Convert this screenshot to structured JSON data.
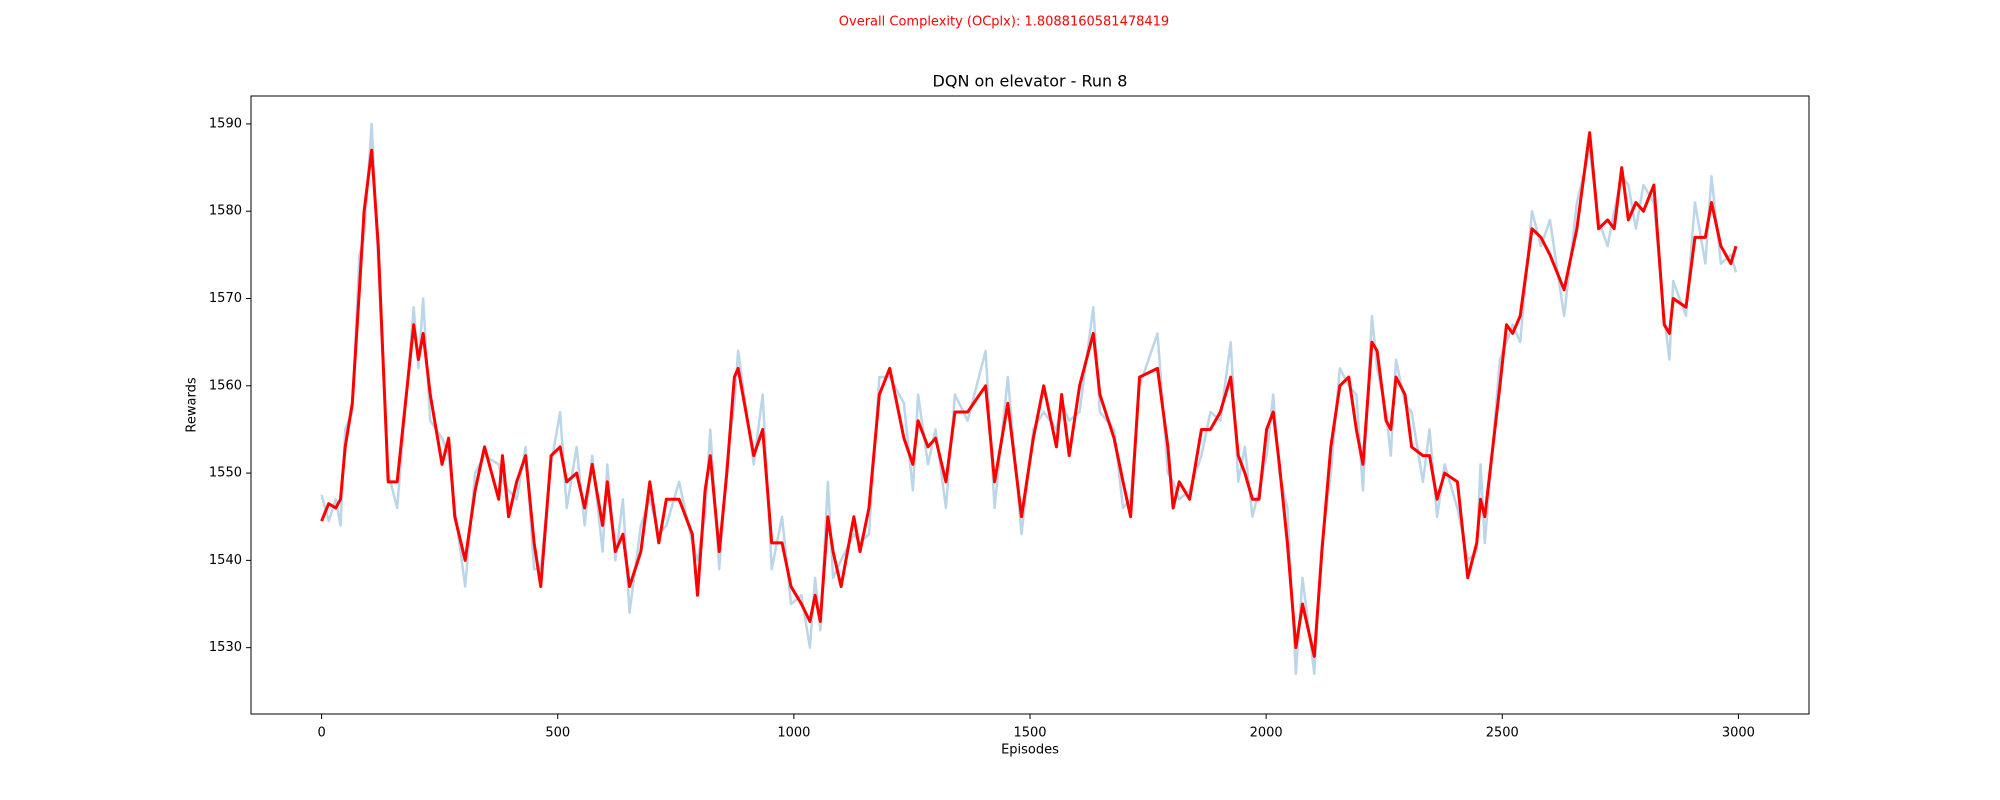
{
  "chart_data": {
    "type": "line",
    "suptitle": "Overall Complexity (OCplx): 1.8088160581478419",
    "suptitle_color": "#ff0000",
    "title": "DQN on elevator - Run 8",
    "xlabel": "Episodes",
    "ylabel": "Rewards",
    "xlim": [
      -149.5,
      3149.5
    ],
    "ylim": [
      1522.4,
      1593.2
    ],
    "xticks": [
      0,
      500,
      1000,
      1500,
      2000,
      2500,
      3000
    ],
    "yticks": [
      1530,
      1540,
      1550,
      1560,
      1570,
      1580,
      1590
    ],
    "x": [
      0,
      15,
      30,
      40,
      50,
      65,
      80,
      90,
      106,
      120,
      141,
      160,
      195,
      205,
      215,
      230,
      255,
      269,
      282,
      304,
      325,
      345,
      375,
      383,
      396,
      413,
      432,
      450,
      464,
      486,
      505,
      519,
      540,
      557,
      573,
      595,
      605,
      622,
      638,
      652,
      676,
      695,
      714,
      730,
      757,
      785,
      796,
      812,
      823,
      842,
      858,
      874,
      882,
      915,
      934,
      953,
      975,
      994,
      1016,
      1034,
      1045,
      1056,
      1072,
      1083,
      1100,
      1127,
      1140,
      1159,
      1181,
      1203,
      1233,
      1252,
      1263,
      1284,
      1300,
      1322,
      1341,
      1368,
      1406,
      1425,
      1453,
      1482,
      1507,
      1529,
      1556,
      1567,
      1583,
      1605,
      1634,
      1648,
      1678,
      1697,
      1713,
      1732,
      1770,
      1792,
      1803,
      1816,
      1838,
      1863,
      1882,
      1903,
      1925,
      1941,
      1955,
      1971,
      1985,
      2001,
      2015,
      2028,
      2045,
      2063,
      2077,
      2102,
      2118,
      2137,
      2156,
      2175,
      2191,
      2205,
      2224,
      2235,
      2254,
      2264,
      2275,
      2294,
      2308,
      2332,
      2346,
      2362,
      2378,
      2405,
      2427,
      2446,
      2454,
      2463,
      2495,
      2509,
      2522,
      2538,
      2563,
      2582,
      2601,
      2631,
      2658,
      2685,
      2704,
      2723,
      2737,
      2753,
      2767,
      2783,
      2799,
      2821,
      2843,
      2854,
      2862,
      2889,
      2908,
      2930,
      2943,
      2963,
      2984,
      2995
    ],
    "series": [
      {
        "color": "#1f77b4",
        "opacity": 0.3,
        "line_width": 2.5,
        "values": [
          1547.5,
          1544.5,
          1547,
          1544,
          1555,
          1557,
          1575,
          1577,
          1590,
          1574,
          1550,
          1546,
          1569,
          1562,
          1570,
          1556,
          1554,
          1552,
          1546,
          1537,
          1550,
          1552,
          1551,
          1549,
          1548,
          1547,
          1553,
          1539,
          1539,
          1551,
          1557,
          1546,
          1553,
          1544,
          1552,
          1541,
          1551,
          1540,
          1547,
          1534,
          1544,
          1547,
          1543,
          1544,
          1549,
          1542,
          1540,
          1545,
          1555,
          1539,
          1551,
          1558,
          1564,
          1551,
          1559,
          1539,
          1545,
          1535,
          1536,
          1530,
          1538,
          1532,
          1549,
          1538,
          1540,
          1543,
          1542,
          1543,
          1561,
          1561,
          1558,
          1548,
          1559,
          1551,
          1555,
          1546,
          1559,
          1556,
          1564,
          1546,
          1561,
          1543,
          1555,
          1557,
          1555,
          1558,
          1556,
          1557,
          1569,
          1557,
          1555,
          1546,
          1547,
          1560,
          1566,
          1550,
          1549,
          1547,
          1548,
          1552,
          1557,
          1556,
          1565,
          1549,
          1553,
          1545,
          1548,
          1552,
          1559,
          1550,
          1546,
          1527,
          1538,
          1527,
          1542,
          1550,
          1562,
          1560,
          1559,
          1548,
          1568,
          1562,
          1557,
          1552,
          1563,
          1558,
          1557,
          1549,
          1555,
          1545,
          1551,
          1546,
          1540,
          1541,
          1551,
          1542,
          1563,
          1565,
          1567,
          1565,
          1580,
          1576,
          1579,
          1568,
          1581,
          1587,
          1579,
          1576,
          1580,
          1584,
          1583,
          1578,
          1583,
          1581,
          1568,
          1563,
          1572,
          1568,
          1581,
          1574,
          1584,
          1574,
          1575,
          1573
        ]
      },
      {
        "color": "#ff0000",
        "opacity": 1,
        "line_width": 3,
        "values": [
          1544.5,
          1546.5,
          1546,
          1547,
          1553,
          1558,
          1571,
          1580,
          1587,
          1576,
          1549,
          1549,
          1567,
          1563,
          1566,
          1559,
          1551,
          1554,
          1545,
          1540,
          1548,
          1553,
          1547,
          1552,
          1545,
          1549,
          1552,
          1542,
          1537,
          1552,
          1553,
          1549,
          1550,
          1546,
          1551,
          1544,
          1549,
          1541,
          1543,
          1537,
          1541,
          1549,
          1542,
          1547,
          1547,
          1543,
          1536,
          1548,
          1552,
          1541,
          1550,
          1561,
          1562,
          1552,
          1555,
          1542,
          1542,
          1537,
          1535,
          1533,
          1536,
          1533,
          1545,
          1541,
          1537,
          1545,
          1541,
          1546,
          1559,
          1562,
          1554,
          1551,
          1556,
          1553,
          1554,
          1549,
          1557,
          1557,
          1560,
          1549,
          1558,
          1545,
          1554,
          1560,
          1553,
          1559,
          1552,
          1560,
          1566,
          1559,
          1554,
          1549,
          1545,
          1561,
          1562,
          1553,
          1546,
          1549,
          1547,
          1555,
          1555,
          1557,
          1561,
          1552,
          1550,
          1547,
          1547,
          1555,
          1557,
          1551,
          1542,
          1530,
          1535,
          1529,
          1541,
          1553,
          1560,
          1561,
          1555,
          1551,
          1565,
          1564,
          1556,
          1555,
          1561,
          1559,
          1553,
          1552,
          1552,
          1547,
          1550,
          1549,
          1538,
          1542,
          1547,
          1545,
          1560,
          1567,
          1566,
          1568,
          1578,
          1577,
          1575,
          1571,
          1578,
          1589,
          1578,
          1579,
          1578,
          1585,
          1579,
          1581,
          1580,
          1583,
          1567,
          1566,
          1570,
          1569,
          1577,
          1577,
          1581,
          1576,
          1574,
          1576
        ]
      }
    ]
  }
}
